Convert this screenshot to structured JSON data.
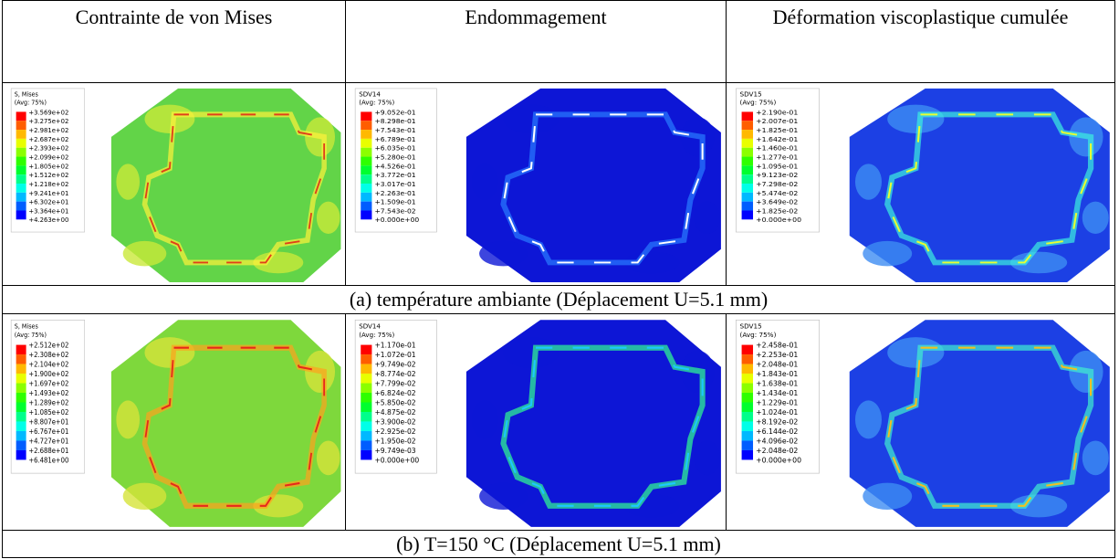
{
  "header": {
    "columns": [
      "Contrainte de von Mises",
      "Endommagement",
      "Déformation viscoplastique cumulée"
    ]
  },
  "rows": [
    {
      "caption": "(a) température ambiante (Déplacement U=5.1 mm)",
      "panels": [
        {
          "title": "S, Mises",
          "avg": "(Avg: 75%)",
          "values": [
            "+3.569e+02",
            "+3.275e+02",
            "+2.981e+02",
            "+2.687e+02",
            "+2.393e+02",
            "+2.099e+02",
            "+1.805e+02",
            "+1.512e+02",
            "+1.218e+02",
            "+9.241e+01",
            "+6.302e+01",
            "+3.364e+01",
            "+4.263e+00"
          ]
        },
        {
          "title": "SDV14",
          "avg": "(Avg: 75%)",
          "values": [
            "+9.052e-01",
            "+8.298e-01",
            "+7.543e-01",
            "+6.789e-01",
            "+6.035e-01",
            "+5.280e-01",
            "+4.526e-01",
            "+3.772e-01",
            "+3.017e-01",
            "+2.263e-01",
            "+1.509e-01",
            "+7.543e-02",
            "+0.000e+00"
          ]
        },
        {
          "title": "SDV15",
          "avg": "(Avg: 75%)",
          "values": [
            "+2.190e-01",
            "+2.007e-01",
            "+1.825e-01",
            "+1.642e-01",
            "+1.460e-01",
            "+1.277e-01",
            "+1.095e-01",
            "+9.123e-02",
            "+7.298e-02",
            "+5.474e-02",
            "+3.649e-02",
            "+1.825e-02",
            "+0.000e+00"
          ]
        }
      ]
    },
    {
      "caption": "(b) T=150 °C (Déplacement U=5.1 mm)",
      "panels": [
        {
          "title": "S, Mises",
          "avg": "(Avg: 75%)",
          "values": [
            "+2.512e+02",
            "+2.308e+02",
            "+2.104e+02",
            "+1.900e+02",
            "+1.697e+02",
            "+1.493e+02",
            "+1.289e+02",
            "+1.085e+02",
            "+8.807e+01",
            "+6.767e+01",
            "+4.727e+01",
            "+2.688e+01",
            "+6.481e+00"
          ]
        },
        {
          "title": "SDV14",
          "avg": "(Avg: 75%)",
          "values": [
            "+1.170e-01",
            "+1.072e-01",
            "+9.749e-02",
            "+8.774e-02",
            "+7.799e-02",
            "+6.824e-02",
            "+5.850e-02",
            "+4.875e-02",
            "+3.900e-02",
            "+2.925e-02",
            "+1.950e-02",
            "+9.749e-03",
            "+0.000e+00"
          ]
        },
        {
          "title": "SDV15",
          "avg": "(Avg: 75%)",
          "values": [
            "+2.458e-01",
            "+2.253e-01",
            "+2.048e-01",
            "+1.843e-01",
            "+1.638e-01",
            "+1.434e-01",
            "+1.229e-01",
            "+1.024e-01",
            "+8.192e-02",
            "+6.144e-02",
            "+4.096e-02",
            "+2.048e-02",
            "+0.000e+00"
          ]
        }
      ]
    }
  ]
}
